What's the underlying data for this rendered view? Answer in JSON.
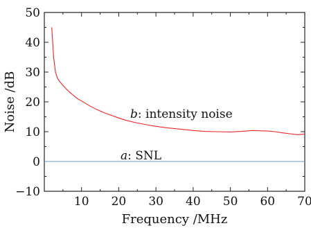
{
  "chart_data": {
    "type": "line",
    "title": "",
    "xlabel": "Frequency /MHz",
    "ylabel": "Noise /dB",
    "xlim": [
      0,
      70
    ],
    "ylim": [
      -10,
      50
    ],
    "grid": false,
    "x_ticks": [
      10,
      20,
      30,
      40,
      50,
      60,
      70
    ],
    "x_tick_labels": [
      "10",
      "20",
      "30",
      "40",
      "50",
      "60",
      "70"
    ],
    "y_ticks": [
      -10,
      0,
      10,
      20,
      30,
      40,
      50
    ],
    "y_tick_labels": [
      "−10",
      "0",
      "10",
      "20",
      "30",
      "40",
      "50"
    ],
    "series": [
      {
        "name": "intensity noise",
        "label_letter": "b",
        "label_text": ": intensity noise",
        "color": "#e8262a",
        "x": [
          2,
          2.5,
          3,
          3.5,
          4,
          5,
          6,
          7,
          8,
          9,
          10,
          12,
          14,
          16,
          18,
          20,
          22,
          25,
          28,
          30,
          33,
          36,
          40,
          43,
          46,
          50,
          53,
          56,
          58,
          60,
          62,
          64,
          66,
          68,
          70
        ],
        "y": [
          45,
          35,
          30,
          28,
          27,
          25.5,
          24.2,
          23,
          22,
          21,
          20.3,
          18.8,
          17.5,
          16.4,
          15.5,
          14.6,
          13.8,
          12.9,
          12.2,
          11.8,
          11.3,
          10.9,
          10.4,
          10.1,
          10.0,
          9.9,
          10.1,
          10.4,
          10.3,
          10.2,
          10.0,
          9.6,
          9.3,
          9.0,
          9.2
        ]
      },
      {
        "name": "SNL",
        "label_letter": "a",
        "label_text": ": SNL",
        "color": "#6f95bf",
        "x": [
          0,
          70
        ],
        "y": [
          0,
          0
        ]
      }
    ]
  }
}
